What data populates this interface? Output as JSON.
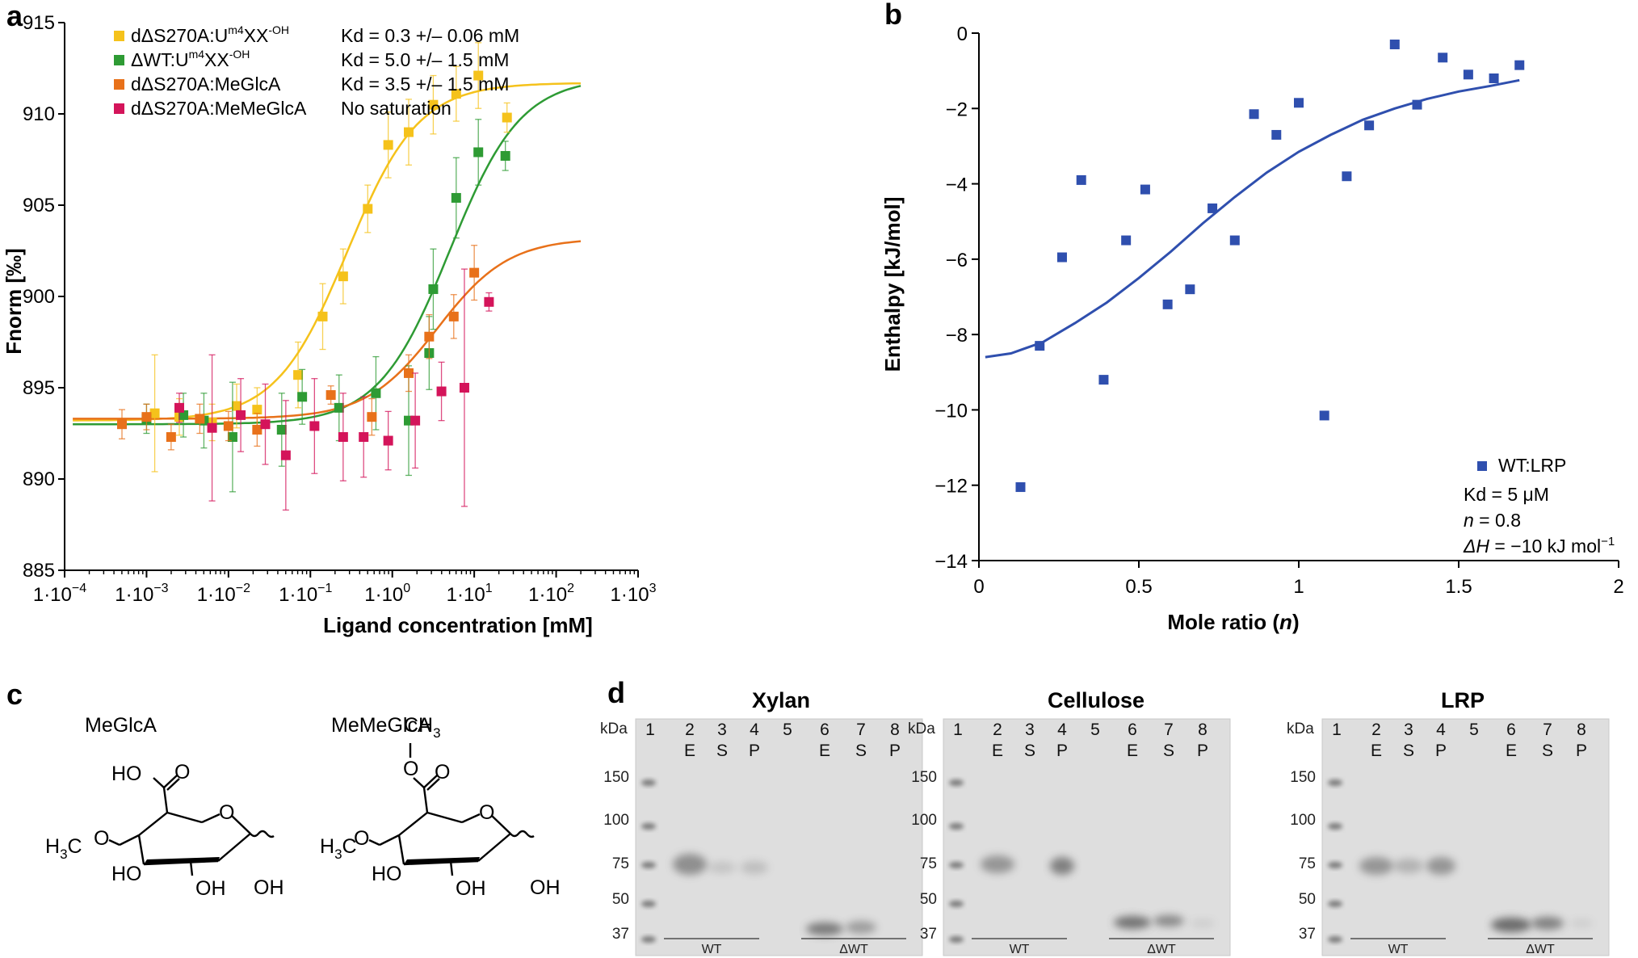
{
  "figure_labels": {
    "a": "a",
    "b": "b",
    "c": "c",
    "d": "d"
  },
  "colors": {
    "yellow": "#F5C21B",
    "green": "#2E9B34",
    "orange": "#E8711A",
    "magenta": "#D4145A",
    "blue": "#2F4FAE",
    "axis": "#000000"
  },
  "chart_data": [
    {
      "id": "panel-a",
      "type": "scatter",
      "xscale": "log",
      "title": "",
      "xlabel": "Ligand concentration [mM]",
      "ylabel": "Fnorm [‰]",
      "xlim_log10": [
        -4,
        3
      ],
      "ylim": [
        885,
        915
      ],
      "xticks_log10": [
        -4,
        -3,
        -2,
        -1,
        0,
        1,
        2,
        3
      ],
      "xtick_labels": [
        "1·10",
        "1·10",
        "1·10",
        "1·10",
        "1·10",
        "1·10",
        "1·10",
        "1·10"
      ],
      "xtick_exponents": [
        "−4",
        "−3",
        "−2",
        "−1",
        "0",
        "1",
        "2",
        "3"
      ],
      "yticks": [
        885,
        890,
        895,
        900,
        905,
        910,
        915
      ],
      "ytick_labels": [
        "885",
        "890",
        "895",
        "900",
        "905",
        "910",
        "915"
      ],
      "legend": [
        {
          "name": "dΔS270A:U",
          "sup": "m4",
          "name2": "XX",
          "sup2": "-OH",
          "kd": "Kd = 0.3 +/– 0.06 mM",
          "color": "#F5C21B"
        },
        {
          "name": "ΔWT:U",
          "sup": "m4",
          "name2": "XX",
          "sup2": "-OH",
          "kd": "Kd = 5.0 +/– 1.5 mM",
          "color": "#2E9B34"
        },
        {
          "name": "dΔS270A:MeGlcA",
          "sup": "",
          "name2": "",
          "sup2": "",
          "kd": "Kd = 3.5 +/– 1.5 mM",
          "color": "#E8711A"
        },
        {
          "name": "dΔS270A:MeMeGlcA",
          "sup": "",
          "name2": "",
          "sup2": "",
          "kd": "No saturation",
          "color": "#D4145A"
        }
      ],
      "series": [
        {
          "name": "dΔS270A:Um4XX-OH",
          "color": "#F5C21B",
          "fit": {
            "bottom": 893.2,
            "top": 911.7,
            "log_kd": -0.55,
            "slope": 1.0
          },
          "points": [
            [
              -2.9,
              893.6,
              3.2
            ],
            [
              -2.6,
              893.4,
              1.0
            ],
            [
              -2.2,
              893.1,
              1.0
            ],
            [
              -1.9,
              894.0,
              1.2
            ],
            [
              -1.65,
              893.8,
              1.2
            ],
            [
              -1.15,
              895.7,
              1.8
            ],
            [
              -0.85,
              898.9,
              1.8
            ],
            [
              -0.6,
              901.1,
              1.5
            ],
            [
              -0.3,
              904.8,
              1.3
            ],
            [
              -0.05,
              908.3,
              1.8
            ],
            [
              0.2,
              909.0,
              1.8
            ],
            [
              0.5,
              910.5,
              1.6
            ],
            [
              0.78,
              911.1,
              1.5
            ],
            [
              1.05,
              912.1,
              1.8
            ],
            [
              1.4,
              909.8,
              0.8
            ]
          ]
        },
        {
          "name": "ΔWT:Um4XX-OH",
          "color": "#2E9B34",
          "fit": {
            "bottom": 893.0,
            "top": 912.0,
            "log_kd": 0.7,
            "slope": 1.0
          },
          "points": [
            [
              -3.0,
              893.3,
              0.8
            ],
            [
              -2.55,
              893.5,
              1.2
            ],
            [
              -2.3,
              893.2,
              1.5
            ],
            [
              -1.95,
              892.3,
              3.0
            ],
            [
              -1.35,
              892.7,
              2.0
            ],
            [
              -1.1,
              894.5,
              1.5
            ],
            [
              -0.65,
              893.9,
              1.8
            ],
            [
              -0.2,
              894.7,
              2.0
            ],
            [
              0.2,
              893.2,
              3.0
            ],
            [
              0.45,
              896.9,
              2.0
            ],
            [
              0.5,
              900.4,
              2.2
            ],
            [
              0.78,
              905.4,
              2.2
            ],
            [
              1.05,
              907.9,
              1.8
            ],
            [
              1.38,
              907.7,
              0.8
            ]
          ]
        },
        {
          "name": "dΔS270A:MeGlcA",
          "color": "#E8711A",
          "fit": {
            "bottom": 893.3,
            "top": 903.2,
            "log_kd": 0.55,
            "slope": 1.0
          },
          "points": [
            [
              -3.3,
              893.0,
              0.8
            ],
            [
              -3.0,
              893.4,
              0.7
            ],
            [
              -2.7,
              892.3,
              0.7
            ],
            [
              -2.35,
              893.3,
              0.8
            ],
            [
              -2.0,
              892.9,
              0.8
            ],
            [
              -1.65,
              892.7,
              0.9
            ],
            [
              -0.75,
              894.6,
              0.5
            ],
            [
              -0.25,
              893.4,
              1.0
            ],
            [
              0.2,
              895.8,
              1.0
            ],
            [
              0.45,
              897.8,
              1.2
            ],
            [
              0.75,
              898.9,
              1.2
            ],
            [
              1.0,
              901.3,
              1.5
            ]
          ]
        },
        {
          "name": "dΔS270A:MeMeGlcA",
          "color": "#D4145A",
          "fit": null,
          "points": [
            [
              -2.6,
              893.9,
              0.8
            ],
            [
              -2.2,
              892.8,
              4.0
            ],
            [
              -1.85,
              893.5,
              2.0
            ],
            [
              -1.55,
              893.0,
              2.2
            ],
            [
              -1.3,
              891.3,
              3.0
            ],
            [
              -0.95,
              892.9,
              2.6
            ],
            [
              -0.6,
              892.3,
              2.4
            ],
            [
              -0.35,
              892.3,
              2.2
            ],
            [
              -0.05,
              892.1,
              1.6
            ],
            [
              0.28,
              893.2,
              2.6
            ],
            [
              0.6,
              894.8,
              1.6
            ],
            [
              0.88,
              895.0,
              6.5
            ],
            [
              1.18,
              899.7,
              0.5
            ]
          ]
        }
      ]
    },
    {
      "id": "panel-b",
      "type": "scatter",
      "title": "",
      "xlabel": "Mole ratio (n)",
      "ylabel": "Enthalpy [kJ/mol]",
      "xlim": [
        0,
        2
      ],
      "ylim": [
        -14,
        0
      ],
      "xticks": [
        0,
        0.5,
        1,
        1.5,
        2
      ],
      "xtick_labels": [
        "0",
        "0.5",
        "1",
        "1.5",
        "2"
      ],
      "yticks": [
        0,
        -2,
        -4,
        -6,
        -8,
        -10,
        -12,
        -14
      ],
      "ytick_labels": [
        "0",
        "−2",
        "−4",
        "−6",
        "−8",
        "−10",
        "−12",
        "−14"
      ],
      "color": "#2F4FAE",
      "legend": {
        "name": "WT:LRP",
        "kd": "Kd = 5 μM",
        "n_label": "n",
        "n_value": " = 0.8",
        "dh_label": "ΔH",
        "dh_value": " = −10 kJ mol",
        "dh_sup": "−1"
      },
      "points": [
        [
          0.13,
          -12.05
        ],
        [
          0.19,
          -8.3
        ],
        [
          0.26,
          -5.95
        ],
        [
          0.32,
          -3.9
        ],
        [
          0.39,
          -9.2
        ],
        [
          0.46,
          -5.5
        ],
        [
          0.52,
          -4.15
        ],
        [
          0.59,
          -7.2
        ],
        [
          0.66,
          -6.8
        ],
        [
          0.73,
          -4.65
        ],
        [
          0.8,
          -5.5
        ],
        [
          0.86,
          -2.15
        ],
        [
          0.93,
          -2.7
        ],
        [
          1.0,
          -1.85
        ],
        [
          1.08,
          -10.15
        ],
        [
          1.15,
          -3.8
        ],
        [
          1.22,
          -2.45
        ],
        [
          1.3,
          -0.3
        ],
        [
          1.37,
          -1.9
        ],
        [
          1.45,
          -0.65
        ],
        [
          1.53,
          -1.1
        ],
        [
          1.61,
          -1.2
        ],
        [
          1.69,
          -0.85
        ]
      ],
      "fit_curve": [
        [
          0.02,
          -8.6
        ],
        [
          0.1,
          -8.5
        ],
        [
          0.2,
          -8.2
        ],
        [
          0.3,
          -7.7
        ],
        [
          0.4,
          -7.15
        ],
        [
          0.5,
          -6.5
        ],
        [
          0.6,
          -5.8
        ],
        [
          0.7,
          -5.05
        ],
        [
          0.8,
          -4.35
        ],
        [
          0.9,
          -3.7
        ],
        [
          1.0,
          -3.15
        ],
        [
          1.1,
          -2.7
        ],
        [
          1.2,
          -2.3
        ],
        [
          1.3,
          -2.0
        ],
        [
          1.4,
          -1.75
        ],
        [
          1.5,
          -1.55
        ],
        [
          1.6,
          -1.4
        ],
        [
          1.69,
          -1.25
        ]
      ]
    }
  ],
  "panel_c": {
    "compounds": [
      {
        "name": "MeGlcA",
        "carboxyl": "HO",
        "carbonyl_o": "O",
        "ring_o": "O",
        "methyl": "H",
        "methyl_sub": "3",
        "methyl_c": "C",
        "ether_o": "O",
        "ho": "HO",
        "oh_bottom": "OH",
        "oh_anomeric": "OH"
      },
      {
        "name": "MeMeGlcA",
        "ester_top": "CH",
        "ester_top_sub": "3",
        "ester_o": "O",
        "carbonyl_o": "O",
        "ring_o": "O",
        "methyl": "H",
        "methyl_sub": "3",
        "methyl_c": "C",
        "ether_o": "O",
        "ho": "HO",
        "oh_bottom": "OH",
        "oh_anomeric": "OH"
      }
    ]
  },
  "panel_d": {
    "gels": [
      {
        "title": "Xylan",
        "kda": "kDa",
        "markers": [
          "150",
          "100",
          "75",
          "50",
          "37"
        ],
        "lanes": [
          "1",
          "2",
          "3",
          "4",
          "5",
          "6",
          "7",
          "8"
        ],
        "fractions": [
          "",
          "E",
          "S",
          "P",
          "",
          "E",
          "S",
          "P"
        ],
        "group_labels": [
          "WT",
          "ΔWT"
        ]
      },
      {
        "title": "Cellulose",
        "kda": "kDa",
        "markers": [
          "150",
          "100",
          "75",
          "50",
          "37"
        ],
        "lanes": [
          "1",
          "2",
          "3",
          "4",
          "5",
          "6",
          "7",
          "8"
        ],
        "fractions": [
          "",
          "E",
          "S",
          "P",
          "",
          "E",
          "S",
          "P"
        ],
        "group_labels": [
          "WT",
          "ΔWT"
        ]
      },
      {
        "title": "LRP",
        "kda": "kDa",
        "markers": [
          "150",
          "100",
          "75",
          "50",
          "37"
        ],
        "lanes": [
          "1",
          "2",
          "3",
          "4",
          "5",
          "6",
          "7",
          "8"
        ],
        "fractions": [
          "",
          "E",
          "S",
          "P",
          "",
          "E",
          "S",
          "P"
        ],
        "group_labels": [
          "WT",
          "ΔWT"
        ]
      }
    ]
  }
}
